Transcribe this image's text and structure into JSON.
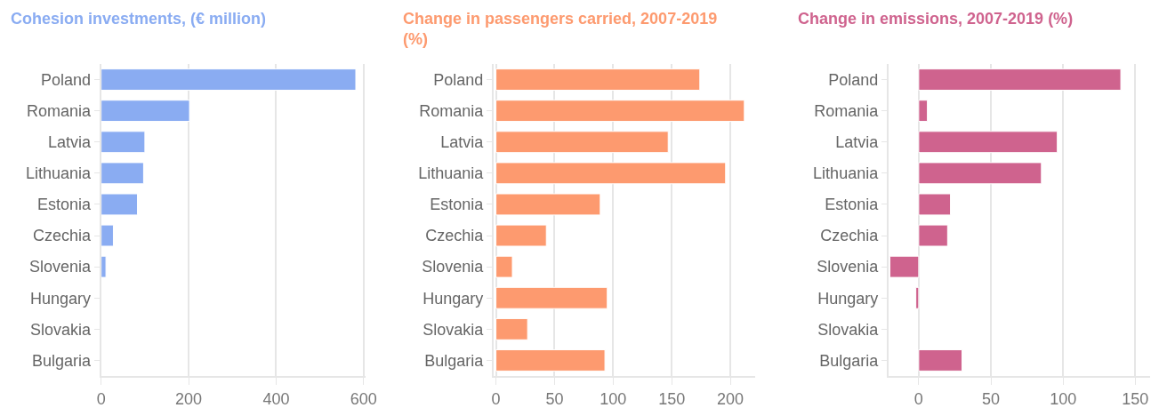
{
  "chart_data": [
    {
      "type": "bar",
      "orientation": "horizontal",
      "title": "Cohesion investments, (€ million)",
      "categories": [
        "Poland",
        "Romania",
        "Latvia",
        "Lithuania",
        "Estonia",
        "Czechia",
        "Slovenia",
        "Hungary",
        "Slovakia",
        "Bulgaria"
      ],
      "values": [
        582,
        202,
        100,
        97,
        83,
        28,
        11,
        null,
        null,
        null
      ],
      "color": "#8aacf2",
      "xlim": [
        0,
        605
      ],
      "xticks": [
        0,
        200,
        400,
        600
      ],
      "grid": "x",
      "legend": false
    },
    {
      "type": "bar",
      "orientation": "horizontal",
      "title": "Change in passengers carried, 2007-2019 (%)",
      "categories": [
        "Poland",
        "Romania",
        "Latvia",
        "Lithuania",
        "Estonia",
        "Czechia",
        "Slovenia",
        "Hungary",
        "Slovakia",
        "Bulgaria"
      ],
      "values": [
        174,
        212,
        147,
        196,
        89,
        43,
        14,
        95,
        27,
        93
      ],
      "color": "#fd9a6f",
      "xlim": [
        -2,
        221
      ],
      "xticks": [
        0,
        50,
        100,
        150,
        200
      ],
      "grid": "x",
      "legend": false
    },
    {
      "type": "bar",
      "orientation": "horizontal",
      "title": "Change in emissions, 2007-2019 (%)",
      "categories": [
        "Poland",
        "Romania",
        "Latvia",
        "Lithuania",
        "Estonia",
        "Czechia",
        "Slovenia",
        "Hungary",
        "Slovakia",
        "Bulgaria"
      ],
      "values": [
        140,
        6,
        96,
        85,
        22,
        20,
        -20,
        -2,
        null,
        30
      ],
      "color": "#cf638e",
      "xlim": [
        -21,
        160
      ],
      "xticks": [
        0,
        50,
        100,
        150
      ],
      "grid": "x",
      "legend": false
    }
  ]
}
